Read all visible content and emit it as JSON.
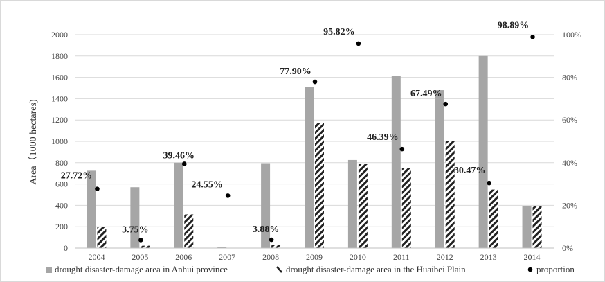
{
  "chart_data": {
    "type": "bar",
    "categories": [
      "2004",
      "2005",
      "2006",
      "2007",
      "2008",
      "2009",
      "2010",
      "2011",
      "2012",
      "2013",
      "2014"
    ],
    "series": [
      {
        "name": "drought disaster-damage area in Anhui province",
        "kind": "bar",
        "color": "#a6a6a6",
        "values": [
          725,
          570,
          800,
          10,
          795,
          1510,
          825,
          1615,
          1480,
          1800,
          395
        ]
      },
      {
        "name": "drought disaster-damage area in the Huaibei Plain",
        "kind": "bar-hatched",
        "color": "#222222",
        "values": [
          200,
          22,
          315,
          0,
          30,
          1175,
          790,
          750,
          1000,
          548,
          392
        ]
      },
      {
        "name": "proportion",
        "kind": "point",
        "axis": "right",
        "color": "#000000",
        "values": [
          27.72,
          3.75,
          39.46,
          24.55,
          3.88,
          77.9,
          95.82,
          46.39,
          67.49,
          30.47,
          98.89
        ],
        "labels": [
          "27.72%",
          "3.75%",
          "39.46%",
          "24.55%",
          "3.88%",
          "77.90%",
          "95.82%",
          "46.39%",
          "67.49%",
          "30.47%",
          "98.89%"
        ]
      }
    ],
    "ylabel": "Area（1000 hectares)",
    "ylim": [
      0,
      2000
    ],
    "y_ticks": [
      "0",
      "200",
      "400",
      "600",
      "800",
      "1000",
      "1200",
      "1400",
      "1600",
      "1800",
      "2000"
    ],
    "y2lim": [
      0,
      100
    ],
    "y2_ticks": [
      "0%",
      "20%",
      "40%",
      "60%",
      "80%",
      "100%"
    ],
    "grid": true,
    "legend_position": "bottom"
  }
}
